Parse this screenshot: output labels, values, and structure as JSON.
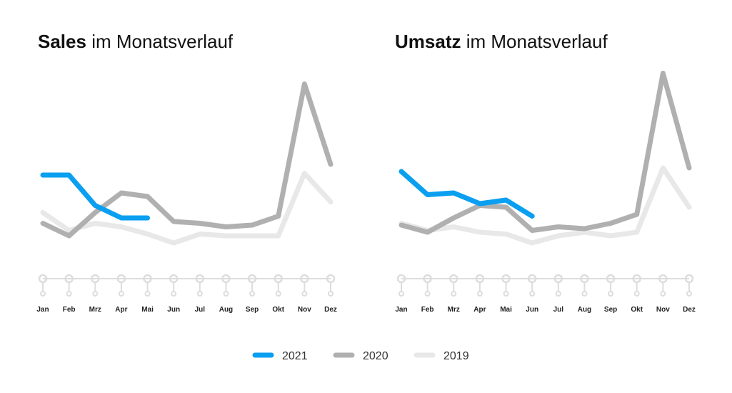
{
  "chart_data": [
    {
      "type": "line",
      "title": {
        "bold": "Sales",
        "text": "im Monatsverlauf"
      },
      "categories": [
        "Jan",
        "Feb",
        "Mrz",
        "Apr",
        "Mai",
        "Jun",
        "Jul",
        "Aug",
        "Sep",
        "Okt",
        "Nov",
        "Dez"
      ],
      "ylim": [
        0,
        108
      ],
      "series": [
        {
          "name": "2021",
          "color": "#0a9ff0",
          "values": [
            46,
            46,
            29,
            22,
            22,
            null,
            null,
            null,
            null,
            null,
            null,
            null
          ]
        },
        {
          "name": "2020",
          "color": "#b0b0b0",
          "values": [
            19,
            12,
            25,
            36,
            34,
            20,
            19,
            17,
            18,
            23,
            97,
            52
          ]
        },
        {
          "name": "2019",
          "color": "#e8e8e8",
          "values": [
            25,
            15,
            19,
            17,
            13,
            8,
            13,
            12,
            12,
            12,
            47,
            31
          ]
        }
      ]
    },
    {
      "type": "line",
      "title": {
        "bold": "Umsatz",
        "text": "im Monatsverlauf"
      },
      "categories": [
        "Jan",
        "Feb",
        "Mrz",
        "Apr",
        "Mai",
        "Jun",
        "Jul",
        "Aug",
        "Sep",
        "Okt",
        "Nov",
        "Dez"
      ],
      "ylim": [
        0,
        108
      ],
      "series": [
        {
          "name": "2021",
          "color": "#0a9ff0",
          "values": [
            48,
            35,
            36,
            30,
            32,
            23,
            null,
            null,
            null,
            null,
            null,
            null
          ]
        },
        {
          "name": "2020",
          "color": "#b0b0b0",
          "values": [
            18,
            14,
            22,
            29,
            28,
            15,
            17,
            16,
            19,
            24,
            103,
            50
          ]
        },
        {
          "name": "2019",
          "color": "#e8e8e8",
          "values": [
            19,
            15,
            17,
            14,
            13,
            8,
            12,
            14,
            12,
            14,
            50,
            28
          ]
        }
      ]
    }
  ]
}
